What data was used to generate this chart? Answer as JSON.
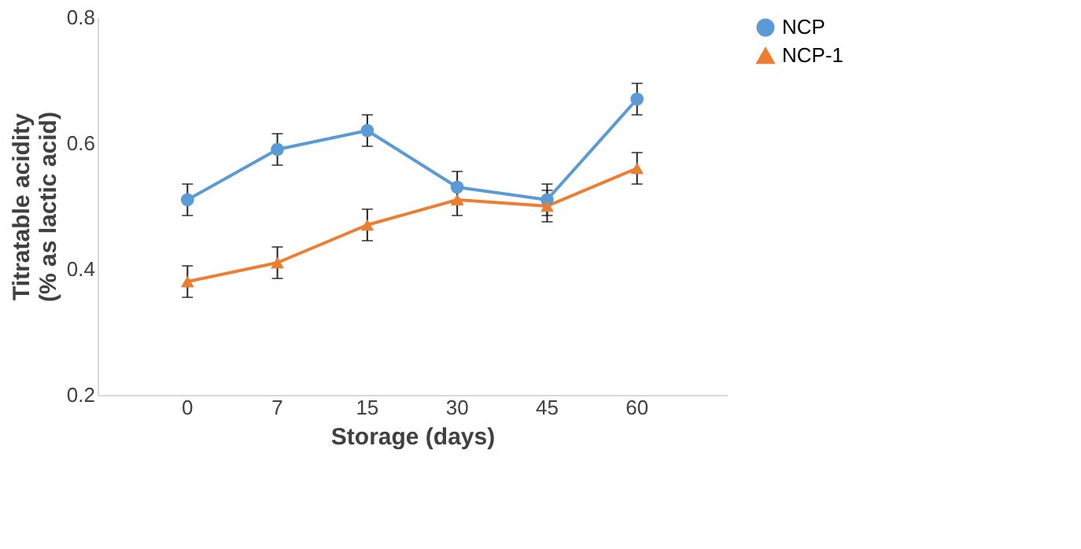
{
  "chart_data": {
    "type": "line",
    "xlabel": "Storage (days)",
    "ylabel": "Titratable acidity\n(% as lactic acid)",
    "categories": [
      "0",
      "7",
      "15",
      "30",
      "45",
      "60"
    ],
    "series": [
      {
        "name": "NCP",
        "color": "#5b9bd5",
        "marker": "circle",
        "values": [
          0.51,
          0.59,
          0.62,
          0.53,
          0.51,
          0.67
        ],
        "errors": [
          0.025,
          0.025,
          0.025,
          0.025,
          0.025,
          0.025
        ]
      },
      {
        "name": "NCP-1",
        "color": "#ed7d31",
        "marker": "triangle",
        "values": [
          0.38,
          0.41,
          0.47,
          0.51,
          0.5,
          0.56
        ],
        "errors": [
          0.025,
          0.025,
          0.025,
          0.025,
          0.025,
          0.025
        ]
      }
    ],
    "ylim": [
      0.2,
      0.8
    ],
    "yticks": [
      0.2,
      0.4,
      0.6,
      0.8
    ],
    "grid": false,
    "legend": "right",
    "line_style": "solid"
  }
}
